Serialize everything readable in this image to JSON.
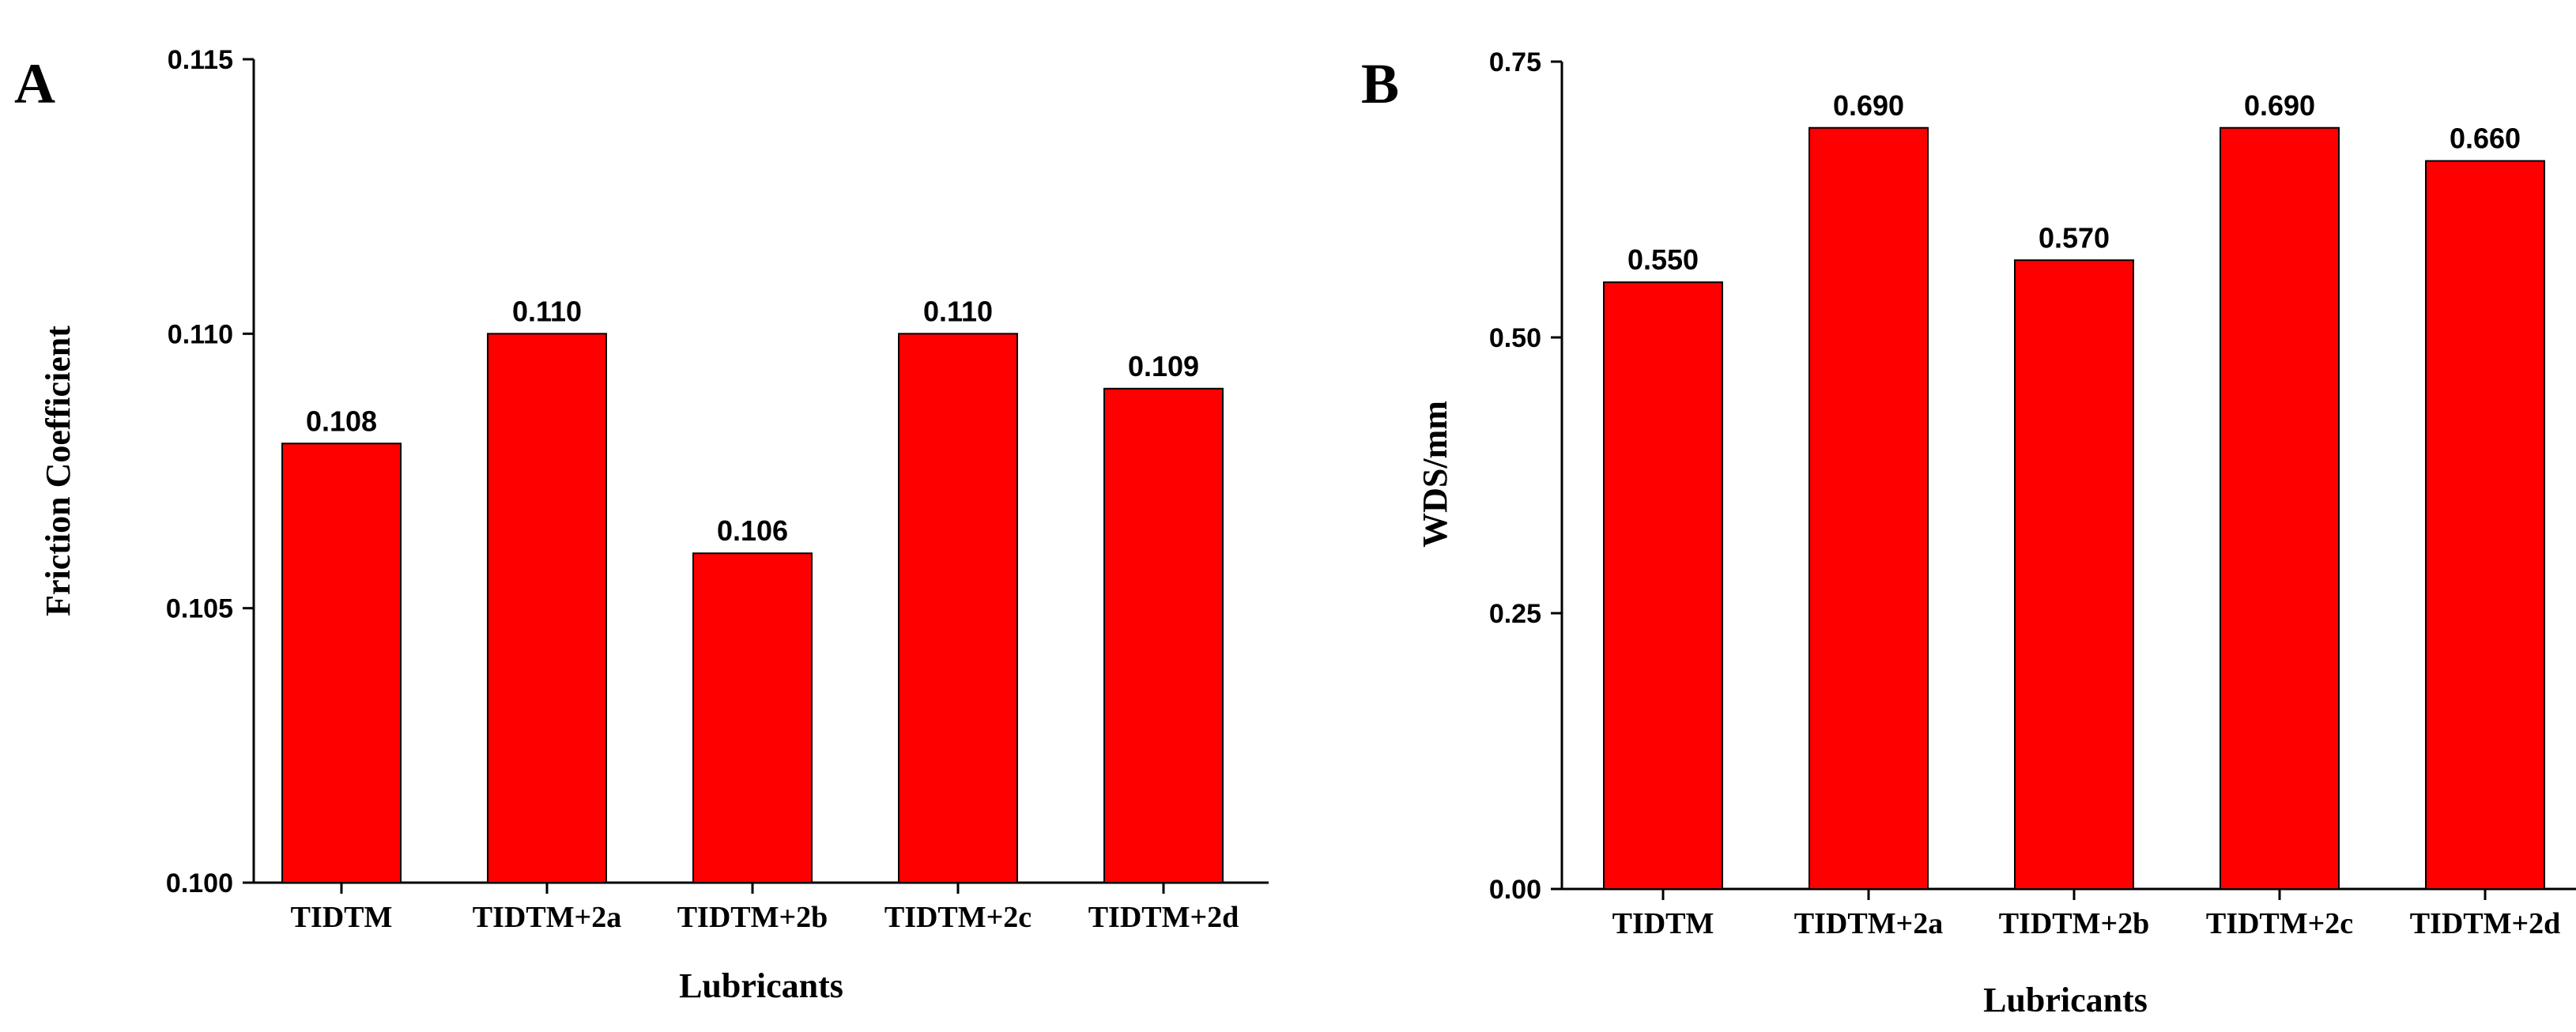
{
  "colors": {
    "bar": "#ff0000",
    "bar_stroke": "#000000",
    "axis": "#000000"
  },
  "chart_data": [
    {
      "panel": "A",
      "type": "bar",
      "categories": [
        "TIDTM",
        "TIDTM+2a",
        "TIDTM+2b",
        "TIDTM+2c",
        "TIDTM+2d"
      ],
      "values": [
        0.108,
        0.11,
        0.106,
        0.11,
        0.109
      ],
      "data_labels": [
        "0.108",
        "0.110",
        "0.106",
        "0.110",
        "0.109"
      ],
      "title": "",
      "xlabel": "Lubricants",
      "ylabel": "Friction Coefficient",
      "ylim": [
        0.1,
        0.115
      ],
      "yticks": [
        0.1,
        0.105,
        0.11,
        0.115
      ],
      "ytick_labels": [
        "0.100",
        "0.105",
        "0.110",
        "0.115"
      ],
      "grid": false
    },
    {
      "panel": "B",
      "type": "bar",
      "categories": [
        "TIDTM",
        "TIDTM+2a",
        "TIDTM+2b",
        "TIDTM+2c",
        "TIDTM+2d"
      ],
      "values": [
        0.55,
        0.69,
        0.57,
        0.69,
        0.66
      ],
      "data_labels": [
        "0.550",
        "0.690",
        "0.570",
        "0.690",
        "0.660"
      ],
      "title": "",
      "xlabel": "Lubricants",
      "ylabel": "WDS/mm",
      "ylim": [
        0.0,
        0.75
      ],
      "yticks": [
        0.0,
        0.25,
        0.5,
        0.75
      ],
      "ytick_labels": [
        "0.00",
        "0.25",
        "0.50",
        "0.75"
      ],
      "grid": false
    }
  ]
}
